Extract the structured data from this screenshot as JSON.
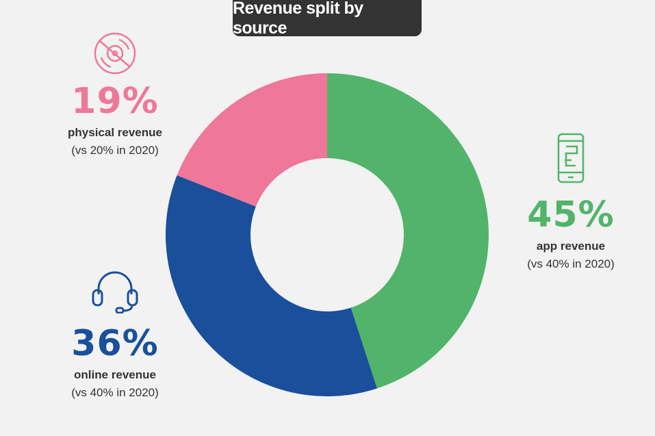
{
  "chart_data": {
    "type": "pie",
    "style": "donut",
    "title": "Revenue split by source",
    "slices": [
      {
        "key": "app",
        "value": 45,
        "display": "45%",
        "label": "app revenue",
        "comparison": "(vs 40% in 2020)",
        "color": "#52b46a",
        "icon": "smartphone-icon"
      },
      {
        "key": "online",
        "value": 36,
        "display": "36%",
        "label": "online revenue",
        "comparison": "(vs 40% in 2020)",
        "color": "#1a4f9c",
        "icon": "headset-icon"
      },
      {
        "key": "physical",
        "value": 19,
        "display": "19%",
        "label": "physical revenue",
        "comparison": "(vs 20% in 2020)",
        "color": "#ef7799",
        "icon": "disc-icon"
      }
    ]
  }
}
